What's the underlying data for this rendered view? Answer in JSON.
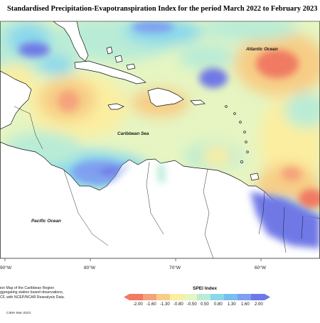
{
  "title": "Standardised Precipitation-Evapotranspiration Index for the period March 2022 to February 2023",
  "labels": {
    "atlantic": "Atlantic Ocean",
    "caribbean": "Caribbean Sea",
    "pacific": "Pacific Ocean"
  },
  "longitudes": [
    "90°W",
    "80°W",
    "70°W",
    "60°W"
  ],
  "notes": {
    "line1": "ion Map of the Caribbean Region",
    "line2": "ggregating station based observations,",
    "line3": "CF, with NCEP/NCAR Reanalysis Data."
  },
  "credit": "CIMH Mar-2023",
  "legend": {
    "title": "SPEI Index",
    "ticks": [
      "-2.00",
      "-1.60",
      "-1.30",
      "-0.80",
      "-0.50",
      "0.50",
      "0.80",
      "1.30",
      "1.60",
      "2.00"
    ],
    "colors": [
      "#f07a62",
      "#f5a37a",
      "#f7cd86",
      "#fbeea0",
      "#e6f5c2",
      "#b9ecd6",
      "#8ad8ec",
      "#77bff0",
      "#7f9ff0",
      "#6f78e6"
    ]
  },
  "colors": {
    "land": "#ffffff",
    "neutral_field": "#e6f5c2"
  }
}
